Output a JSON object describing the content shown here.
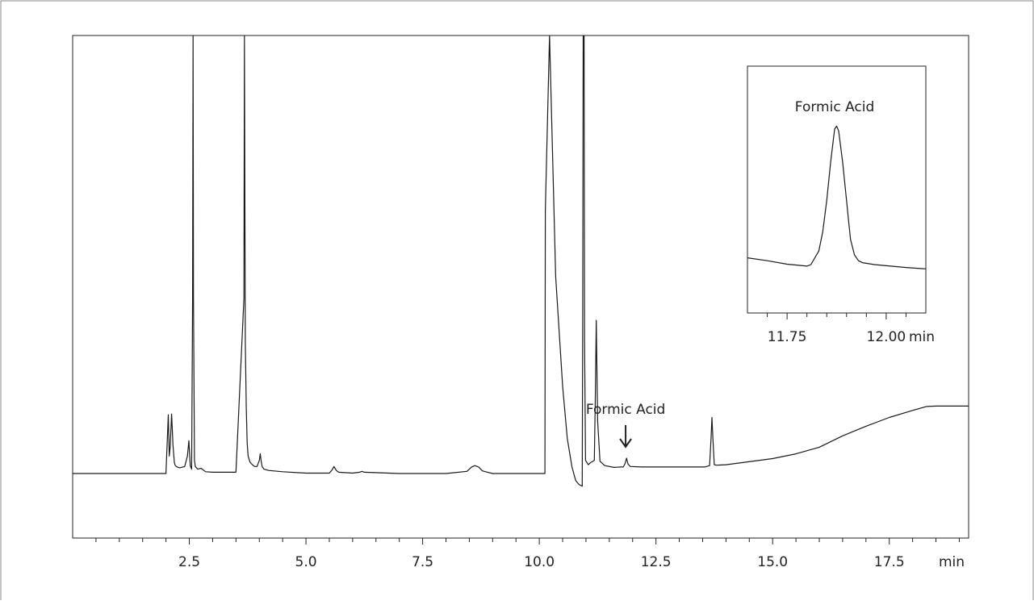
{
  "chart_data": [
    {
      "type": "line",
      "title": "",
      "xlabel": "",
      "ylabel": "",
      "x_unit": "min",
      "xlim": [
        0,
        19.2
      ],
      "x_ticks": [
        2.5,
        5.0,
        7.5,
        10.0,
        12.5,
        15.0,
        17.5
      ],
      "x_tick_labels": [
        "2.5",
        "5.0",
        "7.5",
        "10.0",
        "12.5",
        "15.0",
        "17.5"
      ],
      "x_minor_step": 0.5,
      "ylim": [
        0,
        100
      ],
      "grid": false,
      "annotations": [
        {
          "text": "Formic Acid",
          "x": 11.85,
          "arrow": true
        }
      ],
      "series": [
        {
          "x": [
            0.0,
            2.0,
            2.05,
            2.07,
            2.09,
            2.12,
            2.15,
            2.18,
            2.2,
            2.24,
            2.3,
            2.4,
            2.46,
            2.49,
            2.52,
            2.55,
            2.57,
            2.58,
            2.59,
            2.61,
            2.63,
            2.68,
            2.75,
            2.8,
            2.85,
            3.0,
            3.5,
            3.67,
            3.68,
            3.7,
            3.72,
            3.74,
            3.76,
            3.8,
            3.85,
            3.9,
            3.95,
            4.0,
            4.02,
            4.04,
            4.06,
            4.1,
            4.2,
            4.5,
            5.0,
            5.5,
            5.55,
            5.6,
            5.65,
            5.7,
            6.0,
            6.15,
            6.2,
            6.25,
            7.0,
            8.0,
            8.45,
            8.55,
            8.62,
            8.7,
            8.78,
            8.85,
            9.0,
            10.0,
            10.12,
            10.13,
            10.22,
            10.35,
            10.5,
            10.6,
            10.7,
            10.78,
            10.85,
            10.92,
            10.93,
            10.94,
            10.96,
            10.97,
            10.99,
            11.05,
            11.1,
            11.15,
            11.18,
            11.2,
            11.22,
            11.25,
            11.3,
            11.4,
            11.6,
            11.75,
            11.8,
            11.84,
            11.87,
            11.9,
            11.95,
            12.2,
            12.5,
            13.0,
            13.55,
            13.65,
            13.68,
            13.7,
            13.72,
            13.75,
            13.8,
            14.0,
            15.0,
            15.5,
            16.0,
            16.5,
            17.0,
            17.5,
            18.0,
            18.3,
            18.5,
            19.2
          ],
          "y": [
            0.0,
            0.0,
            13.4,
            4.0,
            6.0,
            13.6,
            6.5,
            2.5,
            1.8,
            1.5,
            1.3,
            1.6,
            4.0,
            7.5,
            1.8,
            1.0,
            40.0,
            100.0,
            40.0,
            3.0,
            1.6,
            1.0,
            1.2,
            0.8,
            0.4,
            0.3,
            0.3,
            40.0,
            100.0,
            30.0,
            15.0,
            7.0,
            4.0,
            2.6,
            2.0,
            1.6,
            1.6,
            3.0,
            4.5,
            2.8,
            1.6,
            1.0,
            0.7,
            0.4,
            0.1,
            0.1,
            0.7,
            1.6,
            0.7,
            0.3,
            0.1,
            0.3,
            0.5,
            0.3,
            0.0,
            0.0,
            0.5,
            1.5,
            1.8,
            1.5,
            0.6,
            0.4,
            0.0,
            0.0,
            0.0,
            60.0,
            100.0,
            45.0,
            20.0,
            8.0,
            1.5,
            -1.6,
            -2.5,
            -2.9,
            35.0,
            100.0,
            100.0,
            30.0,
            3.0,
            2.0,
            2.5,
            2.8,
            3.0,
            17.0,
            35.0,
            12.0,
            2.8,
            1.8,
            1.4,
            1.5,
            1.5,
            2.3,
            3.5,
            2.2,
            1.6,
            1.5,
            1.5,
            1.5,
            1.5,
            1.8,
            8.0,
            12.8,
            8.0,
            2.0,
            1.9,
            2.0,
            3.4,
            4.5,
            6.0,
            8.6,
            10.8,
            12.8,
            14.4,
            15.3,
            15.4,
            15.4
          ]
        }
      ]
    },
    {
      "type": "line",
      "title": "",
      "xlabel": "",
      "ylabel": "",
      "x_unit": "min",
      "xlim": [
        11.65,
        12.1
      ],
      "x_ticks": [
        11.75,
        12.0
      ],
      "x_tick_labels": [
        "11.75",
        "12.00"
      ],
      "x_minor_step": 0.05,
      "ylim": [
        0,
        100
      ],
      "grid": false,
      "annotations": [
        {
          "text": "Formic Acid",
          "x": 11.87,
          "arrow": false
        }
      ],
      "series": [
        {
          "x": [
            11.65,
            11.7,
            11.75,
            11.8,
            11.81,
            11.83,
            11.84,
            11.85,
            11.86,
            11.87,
            11.875,
            11.88,
            11.89,
            11.9,
            11.905,
            11.91,
            11.92,
            11.93,
            11.94,
            11.97,
            12.0,
            12.05,
            12.1
          ],
          "y": [
            8.5,
            7.0,
            5.2,
            4.2,
            5.0,
            12.0,
            22.0,
            38.0,
            58.0,
            75.0,
            76.5,
            74.0,
            58.0,
            38.0,
            28.0,
            18.0,
            10.0,
            7.0,
            6.0,
            5.0,
            4.4,
            3.5,
            2.8
          ]
        }
      ]
    }
  ]
}
